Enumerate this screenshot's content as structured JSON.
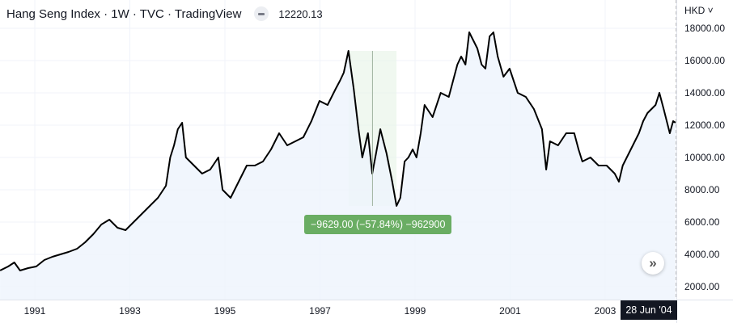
{
  "header": {
    "title": "Hang Seng Index · 1W · TVC · TradingView",
    "last_price": "12220.13",
    "currency": "HKD"
  },
  "measure": {
    "label": "−9629.00 (−57.84%) −962900",
    "from_year": 1997.6,
    "to_year": 1998.61,
    "from_value": 16600,
    "to_value": 7000
  },
  "crosshair_date": "28 Jun '04",
  "scroll_label": "»",
  "colors": {
    "line": "#000000",
    "fill": "#eef4fd",
    "measure_fill": "#e6f4e6",
    "badge": "#6aad63"
  },
  "chart_data": {
    "type": "area",
    "title": "Hang Seng Index · 1W · TVC · TradingView",
    "ylabel": "HKD",
    "ylim": [
      1000,
      19000
    ],
    "xlim": [
      1990.27,
      2004.48
    ],
    "y_ticks": [
      "18000.00",
      "16000.00",
      "14000.00",
      "12000.00",
      "10000.00",
      "8000.00",
      "6000.00",
      "4000.00",
      "2000.00"
    ],
    "y_tick_values": [
      18000,
      16000,
      14000,
      12000,
      10000,
      8000,
      6000,
      4000,
      2000
    ],
    "x_ticks": [
      "1991",
      "1993",
      "1995",
      "1997",
      "1999",
      "2001",
      "2003"
    ],
    "x_tick_values": [
      1991,
      1993,
      1995,
      1997,
      1999,
      2001,
      2003
    ],
    "grid": true,
    "x": [
      1990.27,
      1990.44,
      1990.57,
      1990.69,
      1990.86,
      1991.03,
      1991.2,
      1991.37,
      1991.54,
      1991.71,
      1991.89,
      1992.06,
      1992.23,
      1992.4,
      1992.57,
      1992.74,
      1992.91,
      1993.08,
      1993.25,
      1993.42,
      1993.59,
      1993.76,
      1993.85,
      1993.93,
      1994.01,
      1994.1,
      1994.18,
      1994.35,
      1994.52,
      1994.69,
      1994.86,
      1994.95,
      1995.12,
      1995.29,
      1995.46,
      1995.63,
      1995.8,
      1995.97,
      1996.14,
      1996.31,
      1996.48,
      1996.65,
      1996.82,
      1996.99,
      1997.16,
      1997.33,
      1997.42,
      1997.5,
      1997.6,
      1997.71,
      1997.81,
      1997.89,
      1998.01,
      1998.1,
      1998.18,
      1998.27,
      1998.4,
      1998.52,
      1998.61,
      1998.69,
      1998.78,
      1998.86,
      1998.95,
      1999.03,
      1999.12,
      1999.2,
      1999.37,
      1999.54,
      1999.71,
      1999.89,
      1999.97,
      2000.06,
      2000.14,
      2000.31,
      2000.4,
      2000.48,
      2000.57,
      2000.65,
      2000.74,
      2000.86,
      2000.99,
      2001.16,
      2001.33,
      2001.5,
      2001.67,
      2001.76,
      2001.84,
      2002.01,
      2002.18,
      2002.35,
      2002.44,
      2002.52,
      2002.69,
      2002.86,
      2003.03,
      2003.2,
      2003.29,
      2003.37,
      2003.54,
      2003.71,
      2003.8,
      2003.89,
      2004.06,
      2004.14,
      2004.23,
      2004.36,
      2004.43,
      2004.48
    ],
    "values": [
      3000,
      3250,
      3500,
      3000,
      3150,
      3250,
      3650,
      3850,
      4000,
      4150,
      4350,
      4750,
      5250,
      5850,
      6150,
      5650,
      5500,
      6000,
      6500,
      7000,
      7500,
      8250,
      10000,
      10750,
      11750,
      12150,
      10000,
      9500,
      9000,
      9250,
      10000,
      8000,
      7500,
      8500,
      9500,
      9500,
      9750,
      10500,
      11500,
      10750,
      11000,
      11250,
      12250,
      13500,
      13250,
      14250,
      14750,
      15250,
      16600,
      14250,
      11750,
      10000,
      11500,
      9000,
      10250,
      11750,
      10250,
      8500,
      7000,
      7500,
      9750,
      10000,
      10500,
      10000,
      11500,
      13250,
      12500,
      14000,
      13750,
      15750,
      16250,
      15750,
      17750,
      16750,
      15750,
      15500,
      17500,
      17750,
      16250,
      15000,
      15500,
      14000,
      13750,
      13000,
      11750,
      9250,
      11000,
      10750,
      11500,
      11500,
      10500,
      9750,
      10000,
      9500,
      9500,
      9000,
      8500,
      9500,
      10500,
      11500,
      12250,
      12750,
      13250,
      14000,
      13000,
      11500,
      12250,
      12150
    ]
  }
}
